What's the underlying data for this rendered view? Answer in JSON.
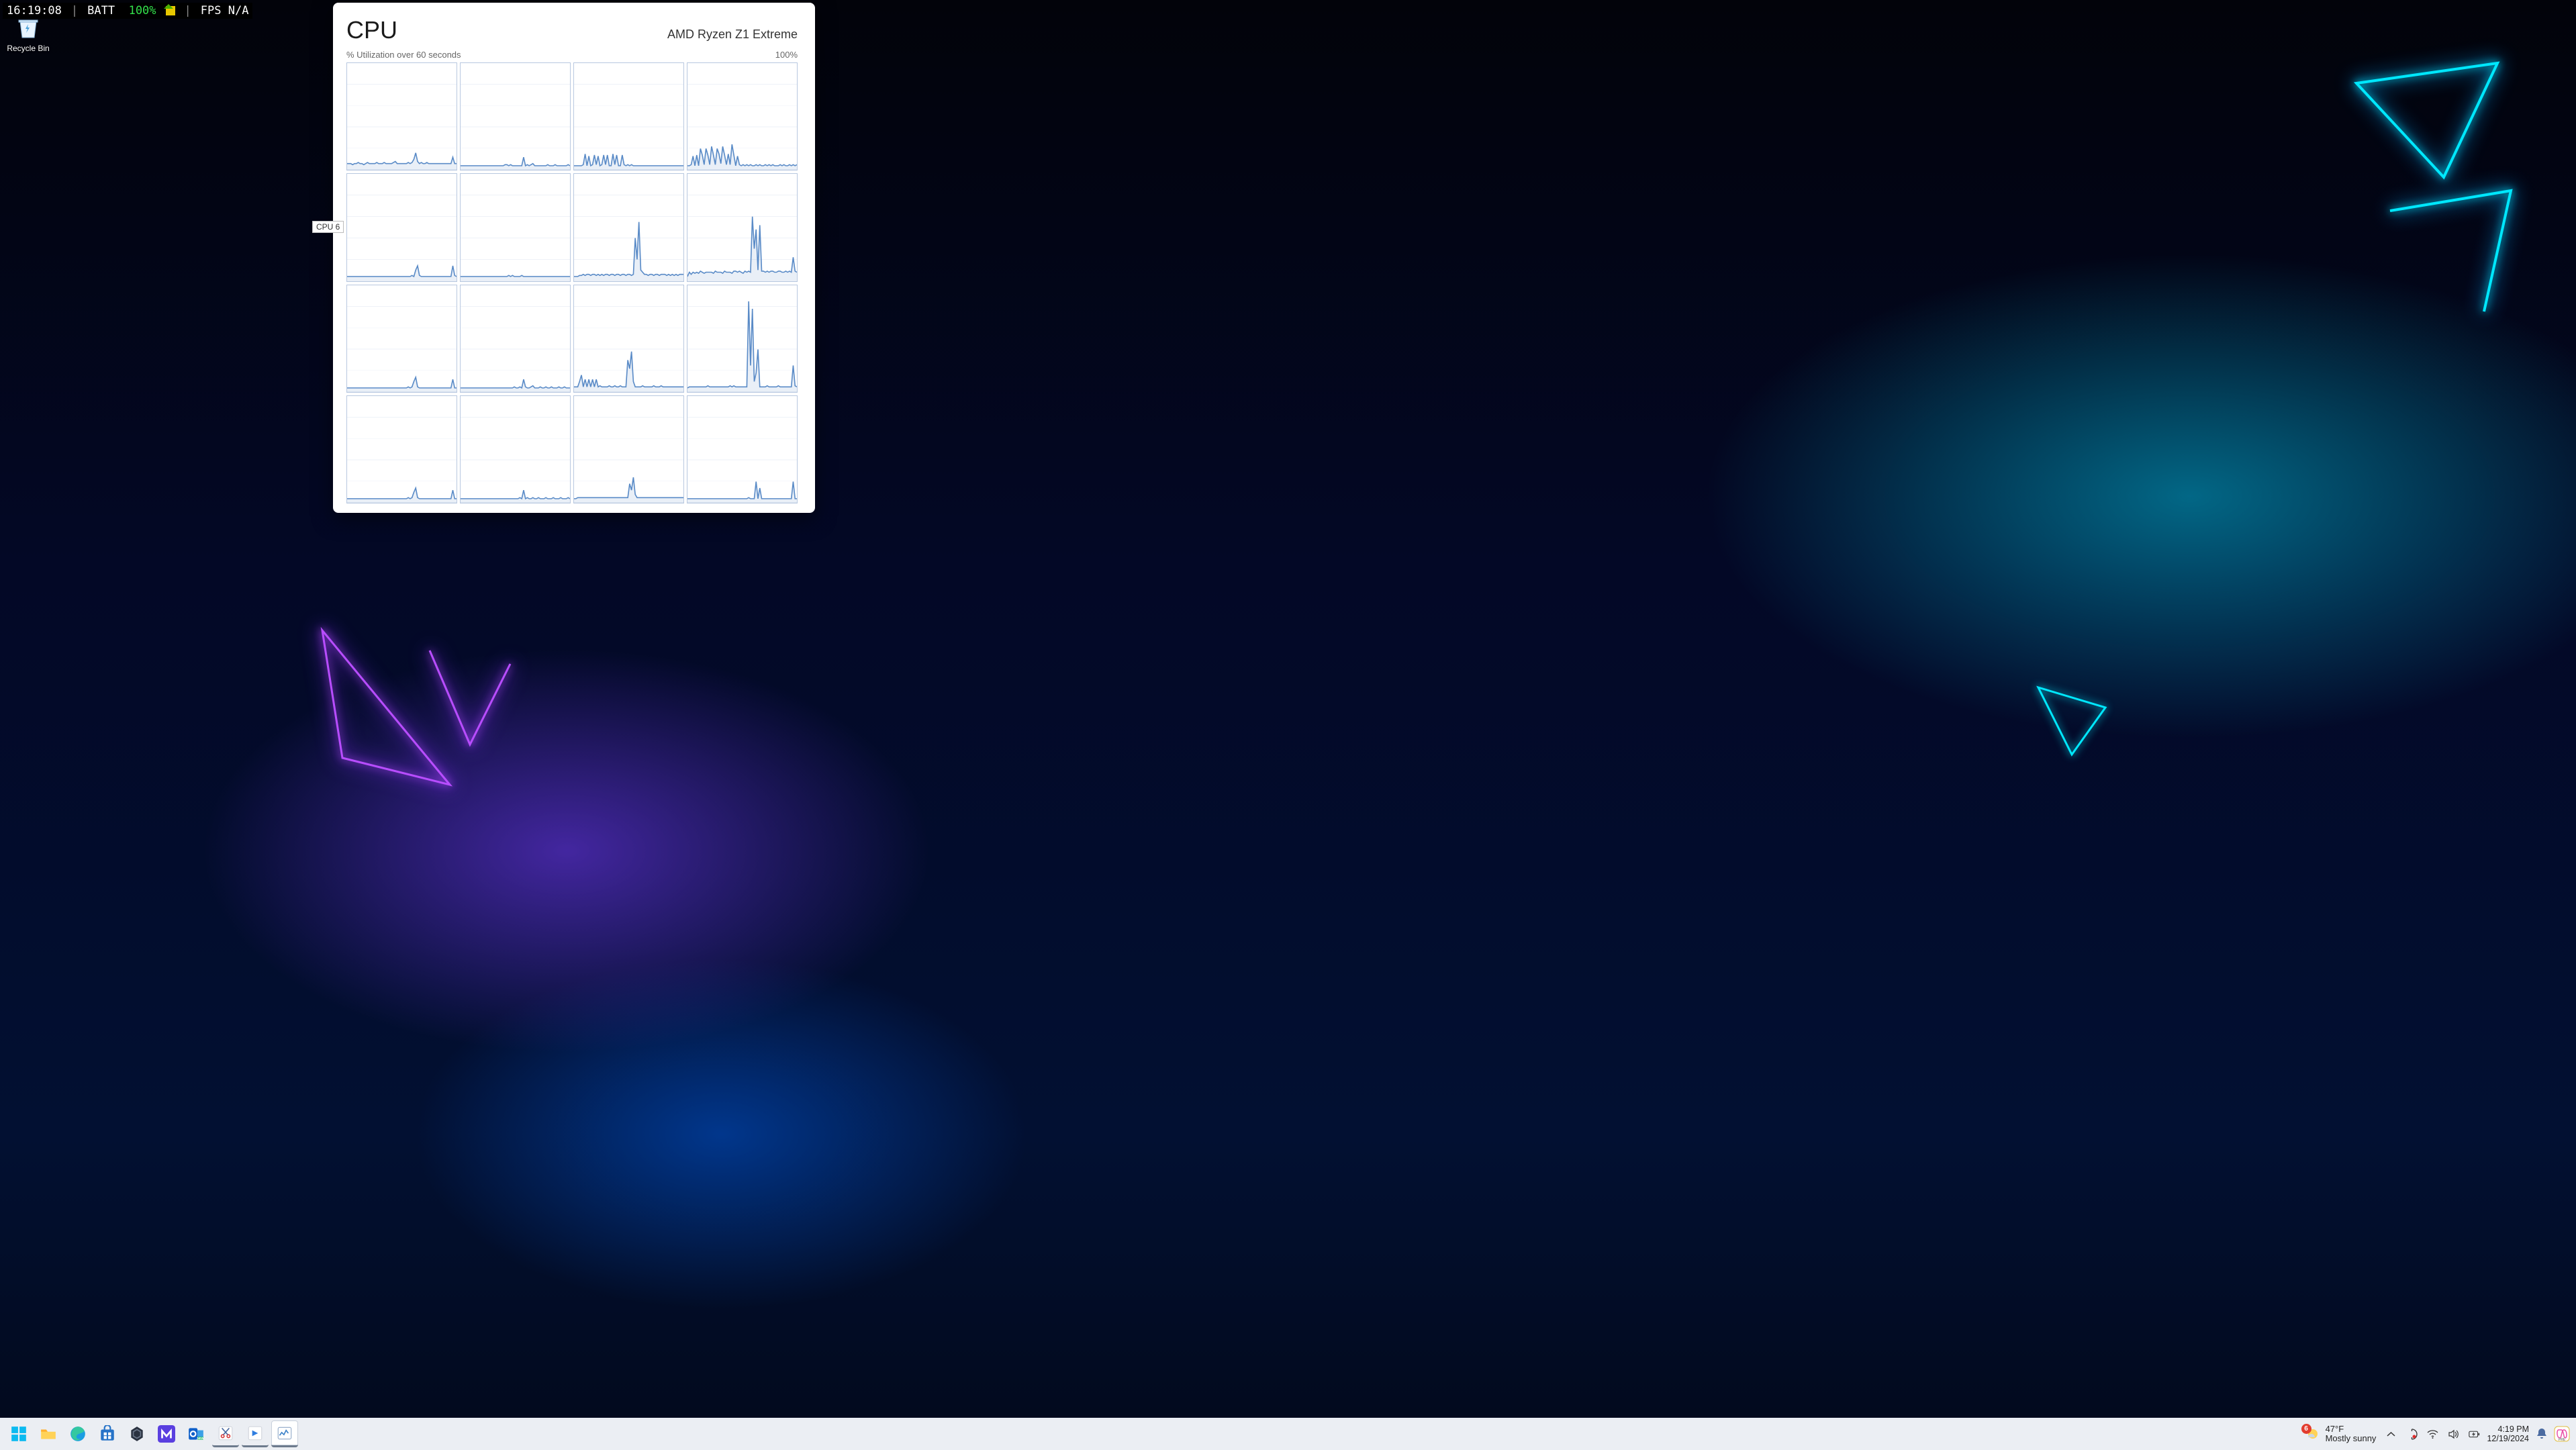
{
  "osd": {
    "time": "16:19:08",
    "batt_label": "BATT",
    "batt_value": "100%",
    "fps_label": "FPS",
    "fps_value": "N/A"
  },
  "desktop": {
    "recycle_bin_label": "Recycle Bin"
  },
  "taskmgr": {
    "title": "CPU",
    "cpu_name": "AMD Ryzen Z1 Extreme",
    "subtitle": "% Utilization over 60 seconds",
    "ymax_label": "100%",
    "tooltip": "CPU 6",
    "chart": {
      "type": "line",
      "rows": 4,
      "cols": 4,
      "points_per_core": 60,
      "ylim": [
        0,
        100
      ],
      "line_color": "#5a8bc7",
      "fill_color": "rgba(73,125,193,0.12)",
      "grid_color": "#eef2f8",
      "border_color": "#b8c8e0",
      "background_color": "#ffffff",
      "cores": [
        [
          6,
          6,
          6,
          5,
          6,
          6,
          7,
          6,
          6,
          5,
          6,
          7,
          6,
          6,
          6,
          6,
          7,
          6,
          6,
          6,
          7,
          6,
          6,
          6,
          6,
          7,
          8,
          6,
          6,
          6,
          6,
          6,
          6,
          7,
          6,
          7,
          10,
          16,
          8,
          6,
          7,
          6,
          6,
          7,
          6,
          6,
          6,
          6,
          6,
          6,
          6,
          6,
          6,
          6,
          6,
          6,
          6,
          12,
          6,
          6
        ],
        [
          4,
          4,
          4,
          4,
          4,
          4,
          4,
          4,
          4,
          4,
          4,
          4,
          4,
          4,
          4,
          4,
          4,
          4,
          4,
          4,
          4,
          4,
          4,
          4,
          5,
          5,
          4,
          5,
          4,
          4,
          4,
          4,
          4,
          4,
          12,
          4,
          5,
          4,
          5,
          6,
          4,
          4,
          4,
          4,
          4,
          4,
          4,
          5,
          4,
          4,
          4,
          5,
          4,
          4,
          4,
          4,
          4,
          4,
          5,
          4
        ],
        [
          4,
          4,
          4,
          4,
          4,
          5,
          15,
          4,
          13,
          4,
          5,
          14,
          5,
          13,
          4,
          5,
          14,
          5,
          14,
          4,
          4,
          15,
          5,
          14,
          4,
          4,
          14,
          5,
          4,
          5,
          4,
          5,
          4,
          4,
          4,
          4,
          4,
          4,
          4,
          4,
          4,
          4,
          4,
          4,
          4,
          4,
          4,
          4,
          4,
          4,
          4,
          4,
          4,
          4,
          4,
          4,
          4,
          4,
          4,
          4
        ],
        [
          4,
          4,
          5,
          13,
          4,
          14,
          4,
          20,
          14,
          5,
          20,
          14,
          5,
          22,
          14,
          5,
          20,
          15,
          6,
          22,
          14,
          5,
          15,
          5,
          24,
          14,
          4,
          13,
          5,
          4,
          5,
          4,
          5,
          4,
          5,
          4,
          4,
          5,
          4,
          5,
          4,
          4,
          5,
          4,
          5,
          4,
          5,
          4,
          4,
          4,
          5,
          4,
          5,
          4,
          4,
          5,
          4,
          5,
          4,
          5
        ],
        [
          4,
          4,
          4,
          4,
          4,
          4,
          4,
          4,
          4,
          4,
          4,
          4,
          4,
          4,
          4,
          4,
          4,
          4,
          4,
          4,
          4,
          4,
          4,
          4,
          4,
          4,
          4,
          4,
          4,
          4,
          4,
          4,
          4,
          4,
          4,
          5,
          4,
          10,
          14,
          5,
          4,
          4,
          4,
          4,
          4,
          4,
          4,
          4,
          4,
          4,
          4,
          4,
          4,
          4,
          4,
          4,
          4,
          14,
          5,
          4
        ],
        [
          4,
          4,
          4,
          4,
          4,
          4,
          4,
          4,
          4,
          4,
          4,
          4,
          4,
          4,
          4,
          4,
          4,
          4,
          4,
          4,
          4,
          4,
          4,
          4,
          4,
          4,
          5,
          4,
          5,
          4,
          4,
          4,
          4,
          5,
          4,
          4,
          4,
          4,
          4,
          4,
          4,
          4,
          4,
          4,
          4,
          4,
          4,
          4,
          4,
          4,
          4,
          4,
          4,
          4,
          4,
          4,
          4,
          4,
          4,
          4
        ],
        [
          4,
          4,
          4,
          5,
          5,
          6,
          5,
          6,
          6,
          5,
          6,
          6,
          5,
          6,
          5,
          6,
          5,
          6,
          6,
          5,
          6,
          6,
          5,
          6,
          6,
          5,
          6,
          6,
          5,
          6,
          6,
          5,
          6,
          40,
          20,
          55,
          10,
          8,
          6,
          6,
          5,
          6,
          6,
          5,
          6,
          6,
          5,
          6,
          6,
          6,
          5,
          6,
          5,
          6,
          5,
          6,
          5,
          6,
          6,
          6
        ],
        [
          4,
          8,
          6,
          8,
          7,
          8,
          7,
          9,
          8,
          7,
          8,
          8,
          8,
          8,
          7,
          9,
          8,
          8,
          8,
          7,
          9,
          8,
          8,
          8,
          7,
          9,
          9,
          8,
          9,
          8,
          7,
          9,
          8,
          9,
          8,
          60,
          30,
          48,
          10,
          52,
          9,
          9,
          8,
          9,
          8,
          9,
          9,
          8,
          8,
          9,
          9,
          8,
          8,
          9,
          8,
          9,
          8,
          22,
          9,
          8
        ],
        [
          4,
          4,
          4,
          4,
          4,
          4,
          4,
          4,
          4,
          4,
          4,
          4,
          4,
          4,
          4,
          4,
          4,
          4,
          4,
          4,
          4,
          4,
          4,
          4,
          4,
          4,
          4,
          4,
          4,
          4,
          4,
          4,
          4,
          5,
          4,
          5,
          10,
          14,
          5,
          4,
          4,
          4,
          4,
          4,
          4,
          4,
          4,
          4,
          4,
          4,
          4,
          4,
          4,
          4,
          4,
          4,
          4,
          12,
          4,
          4
        ],
        [
          4,
          4,
          4,
          4,
          4,
          4,
          4,
          4,
          4,
          4,
          4,
          4,
          4,
          4,
          4,
          4,
          4,
          4,
          4,
          4,
          4,
          4,
          4,
          4,
          4,
          4,
          4,
          4,
          4,
          5,
          4,
          4,
          5,
          4,
          12,
          5,
          4,
          4,
          5,
          6,
          4,
          4,
          4,
          5,
          4,
          4,
          5,
          4,
          4,
          5,
          4,
          4,
          4,
          5,
          4,
          4,
          5,
          4,
          4,
          4
        ],
        [
          5,
          5,
          5,
          10,
          16,
          5,
          12,
          5,
          12,
          5,
          12,
          5,
          12,
          5,
          6,
          5,
          5,
          5,
          5,
          6,
          5,
          5,
          6,
          5,
          5,
          6,
          5,
          5,
          5,
          30,
          22,
          38,
          10,
          5,
          5,
          5,
          5,
          6,
          5,
          5,
          5,
          5,
          5,
          6,
          5,
          5,
          5,
          6,
          5,
          5,
          5,
          5,
          5,
          5,
          5,
          5,
          5,
          5,
          5,
          5
        ],
        [
          4,
          5,
          5,
          5,
          5,
          5,
          5,
          5,
          5,
          5,
          5,
          6,
          5,
          5,
          5,
          5,
          5,
          5,
          5,
          5,
          5,
          5,
          5,
          6,
          5,
          6,
          5,
          5,
          5,
          5,
          5,
          5,
          5,
          85,
          25,
          78,
          10,
          18,
          40,
          5,
          5,
          5,
          5,
          6,
          5,
          5,
          5,
          5,
          5,
          6,
          5,
          5,
          5,
          5,
          5,
          5,
          5,
          25,
          6,
          5
        ],
        [
          4,
          4,
          4,
          4,
          4,
          4,
          4,
          4,
          4,
          4,
          4,
          4,
          4,
          4,
          4,
          4,
          4,
          4,
          4,
          4,
          4,
          4,
          4,
          4,
          4,
          4,
          4,
          4,
          4,
          4,
          4,
          4,
          4,
          5,
          4,
          5,
          10,
          14,
          5,
          4,
          4,
          4,
          4,
          4,
          4,
          4,
          4,
          4,
          4,
          4,
          4,
          4,
          4,
          4,
          4,
          4,
          4,
          12,
          4,
          4
        ],
        [
          4,
          4,
          4,
          4,
          4,
          4,
          4,
          4,
          4,
          4,
          4,
          4,
          4,
          4,
          4,
          4,
          4,
          4,
          4,
          4,
          4,
          4,
          4,
          4,
          4,
          4,
          4,
          4,
          4,
          4,
          4,
          4,
          5,
          4,
          12,
          4,
          5,
          4,
          4,
          5,
          4,
          4,
          5,
          4,
          4,
          4,
          5,
          4,
          4,
          4,
          5,
          4,
          4,
          4,
          5,
          4,
          4,
          4,
          5,
          4
        ],
        [
          4,
          4,
          5,
          5,
          5,
          5,
          5,
          5,
          5,
          5,
          5,
          5,
          5,
          5,
          5,
          5,
          5,
          5,
          5,
          5,
          5,
          5,
          5,
          5,
          5,
          5,
          5,
          5,
          5,
          5,
          18,
          12,
          24,
          8,
          5,
          5,
          5,
          5,
          5,
          5,
          5,
          5,
          5,
          5,
          5,
          5,
          5,
          5,
          5,
          5,
          5,
          5,
          5,
          5,
          5,
          5,
          5,
          5,
          5,
          5
        ],
        [
          4,
          4,
          4,
          4,
          4,
          4,
          4,
          4,
          4,
          4,
          4,
          4,
          4,
          4,
          4,
          4,
          4,
          4,
          4,
          4,
          4,
          4,
          4,
          4,
          4,
          4,
          4,
          4,
          4,
          4,
          4,
          4,
          4,
          5,
          4,
          4,
          4,
          20,
          4,
          14,
          4,
          4,
          4,
          4,
          4,
          4,
          4,
          4,
          4,
          4,
          4,
          4,
          4,
          4,
          4,
          4,
          4,
          20,
          4,
          4
        ]
      ]
    }
  },
  "taskbar": {
    "weather": {
      "badge": "6",
      "temp": "47°F",
      "desc": "Mostly sunny"
    },
    "clock": {
      "time": "4:19 PM",
      "date": "12/19/2024"
    },
    "apps": [
      {
        "name": "start",
        "title": "Start"
      },
      {
        "name": "explorer",
        "title": "File Explorer"
      },
      {
        "name": "edge",
        "title": "Microsoft Edge"
      },
      {
        "name": "store",
        "title": "Microsoft Store"
      },
      {
        "name": "hex-app",
        "title": "App"
      },
      {
        "name": "m-app",
        "title": "App"
      },
      {
        "name": "outlook",
        "title": "Outlook"
      },
      {
        "name": "snip",
        "title": "Snipping Tool"
      },
      {
        "name": "bt-app",
        "title": "App"
      },
      {
        "name": "taskmgr",
        "title": "Task Manager"
      }
    ]
  }
}
